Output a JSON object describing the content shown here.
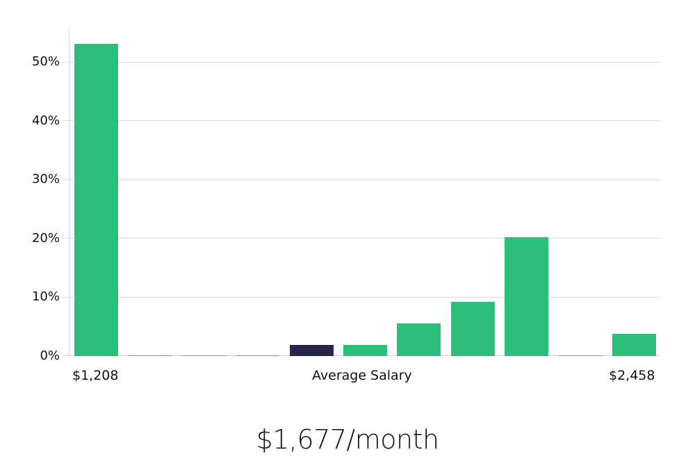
{
  "chart_data": {
    "type": "bar",
    "title": "",
    "xlabel": "Average Salary",
    "ylabel": "",
    "ylim": [
      0,
      56
    ],
    "yticks": [
      "0%",
      "10%",
      "20%",
      "30%",
      "40%",
      "50%"
    ],
    "x_min_label": "$1,208",
    "x_max_label": "$2,458",
    "grid": true,
    "categories": [
      "bin1",
      "bin2",
      "bin3",
      "bin4",
      "bin5",
      "bin6",
      "bin7",
      "bin8",
      "bin9",
      "bin10",
      "bin11"
    ],
    "values": [
      53.1,
      0.1,
      0.1,
      0.1,
      1.9,
      1.9,
      5.6,
      9.2,
      20.2,
      0.1,
      3.8
    ],
    "highlight_index": 4,
    "colors": {
      "bar": "#2bbf7a",
      "highlight": "#28244a",
      "grid": "#dcdcdc"
    }
  },
  "axis": {
    "y_labels": [
      "0%",
      "10%",
      "20%",
      "30%",
      "40%",
      "50%"
    ],
    "x_left": "$1,208",
    "x_center": "Average Salary",
    "x_right": "$2,458"
  },
  "summary": {
    "average": "$1,677/month"
  }
}
